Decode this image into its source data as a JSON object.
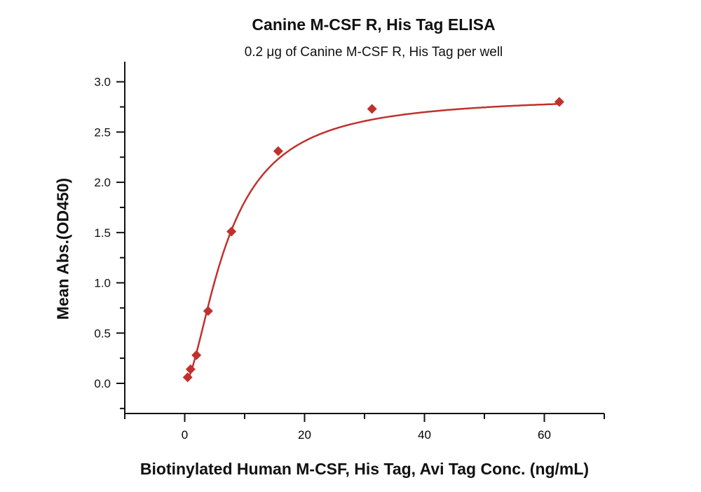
{
  "chart_data": {
    "type": "scatter",
    "title": "Canine M-CSF R, His Tag ELISA",
    "subtitle": "0.2 μg of Canine M-CSF R, His Tag per well",
    "xlabel": "Biotinylated Human M-CSF, His Tag, Avi Tag Conc. (ng/mL)",
    "ylabel": "Mean Abs.(OD450)",
    "xlim": [
      -10,
      70
    ],
    "ylim": [
      -0.3,
      3.2
    ],
    "xticks": [
      0,
      20,
      40,
      60
    ],
    "yticks": [
      "0.0",
      "0.5",
      "1.0",
      "1.5",
      "2.0",
      "2.5",
      "3.0"
    ],
    "grid": false,
    "legend": "none",
    "color": "#c0312d",
    "marker": "diamond",
    "fit_line": "4-parameter logistic curve",
    "points": [
      {
        "x": 0.49,
        "y": 0.06
      },
      {
        "x": 0.98,
        "y": 0.14
      },
      {
        "x": 1.95,
        "y": 0.28
      },
      {
        "x": 3.9,
        "y": 0.72
      },
      {
        "x": 7.8,
        "y": 1.51
      },
      {
        "x": 15.6,
        "y": 2.31
      },
      {
        "x": 31.25,
        "y": 2.73
      },
      {
        "x": 62.5,
        "y": 2.8
      }
    ]
  }
}
